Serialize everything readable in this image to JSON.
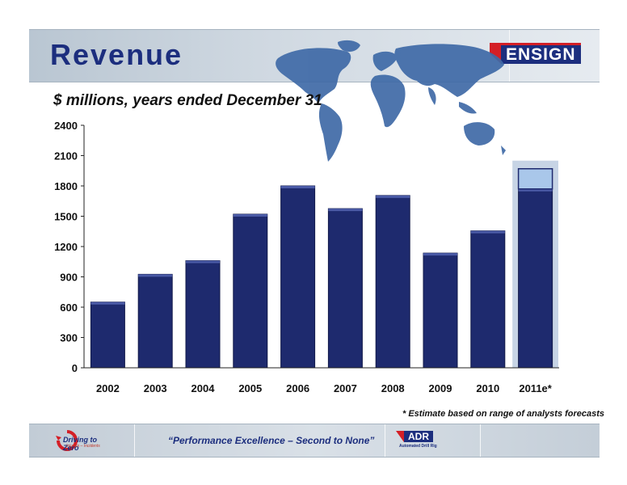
{
  "header": {
    "title": "Revenue",
    "logo_text": "ENSIGN"
  },
  "subtitle": "$ millions, years ended December 31",
  "footnote": "* Estimate based on range of analysts forecasts",
  "footer": {
    "slogan": "“Performance Excellence – Second to None”",
    "dtz_label": "Driving to Zero",
    "dtz_sub": "Injuries – Incidents",
    "adr_label": "ADR",
    "adr_sub": "Automated Drill Rig"
  },
  "colors": {
    "bar": "#1e2a6e",
    "estimate_band": "#b4c6dc",
    "estimate_range": "#a9c7ea",
    "header_text": "#1c2e7e",
    "accent_red": "#d41f26"
  },
  "chart_data": {
    "type": "bar",
    "categories": [
      "2002",
      "2003",
      "2004",
      "2005",
      "2006",
      "2007",
      "2008",
      "2009",
      "2010",
      "2011e*"
    ],
    "values": [
      650,
      925,
      1060,
      1520,
      1800,
      1575,
      1705,
      1135,
      1355,
      1770
    ],
    "estimate_range": {
      "category": "2011e*",
      "low": 1770,
      "high": 1970
    },
    "yticks": [
      0,
      300,
      600,
      900,
      1200,
      1500,
      1800,
      2100,
      2400
    ],
    "ylim": [
      0,
      2400
    ],
    "title": "Revenue",
    "xlabel": "",
    "ylabel": "",
    "grid": false,
    "legend": "none"
  }
}
